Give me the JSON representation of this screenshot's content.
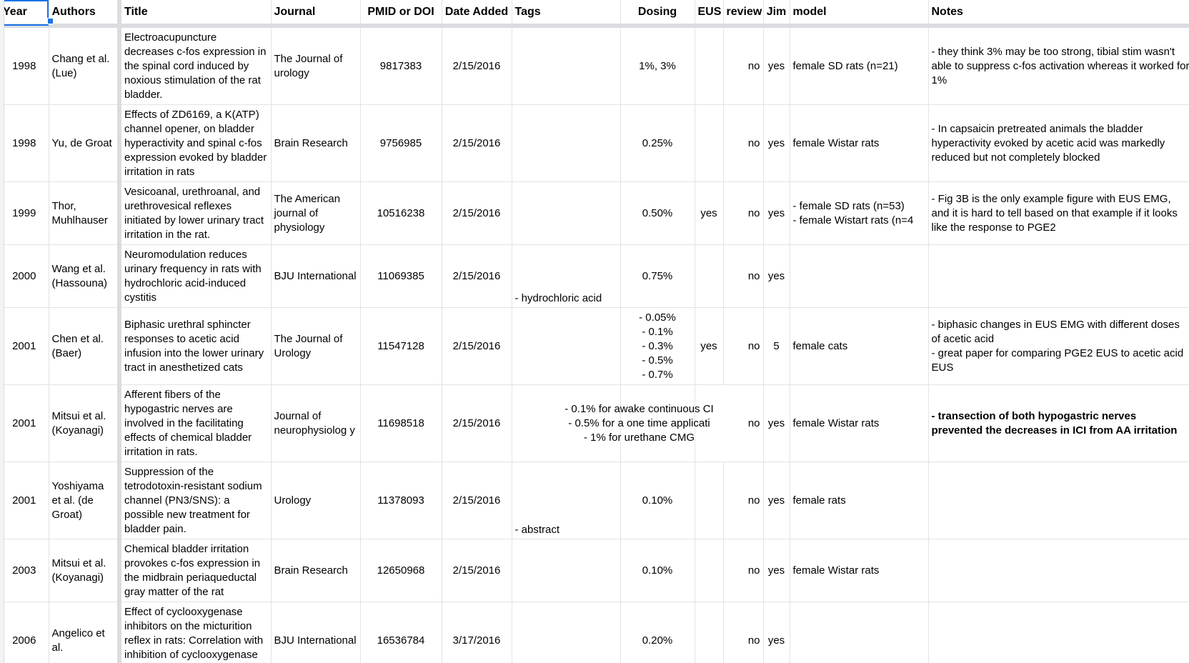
{
  "headers": {
    "year": "Year",
    "authors": "Authors",
    "title": "Title",
    "journal": "Journal",
    "pmid": "PMID or DOI",
    "date": "Date Added",
    "tags": "Tags",
    "dosing": "Dosing",
    "eus": "EUS",
    "review": "review",
    "jim": "Jim",
    "model": "model",
    "notes": "Notes"
  },
  "rows": [
    {
      "year": "1998",
      "authors": "Chang et al. (Lue)",
      "title": "Electroacupuncture decreases c-fos expression in the spinal cord induced by noxious stimulation of the rat bladder.",
      "journal": "The Journal of urology",
      "pmid": "9817383",
      "date": "2/15/2016",
      "tags": "",
      "dosing": "1%, 3%",
      "eus": "",
      "review": "no",
      "jim": "yes",
      "model": "female SD rats (n=21)",
      "notes": "- they think 3% may be too strong, tibial stim wasn't able to suppress c-fos activation whereas it worked for 1%"
    },
    {
      "year": "1998",
      "authors": "Yu, de Groat",
      "title": "Effects of ZD6169, a K(ATP) channel opener, on bladder hyperactivity and spinal c-fos expression evoked by bladder irritation in rats",
      "journal": "Brain Research",
      "pmid": "9756985",
      "date": "2/15/2016",
      "tags": "",
      "dosing": "0.25%",
      "eus": "",
      "review": "no",
      "jim": "yes",
      "model": "female Wistar rats",
      "notes": "- In capsaicin pretreated animals the bladder hyperactivity evoked by acetic acid was markedly reduced but not completely blocked"
    },
    {
      "year": "1999",
      "authors": "Thor, Muhlhauser",
      "title": "Vesicoanal, urethroanal, and urethrovesical reflexes initiated by lower urinary tract irritation in the rat.",
      "journal": "The American journal of physiology",
      "pmid": "10516238",
      "date": "2/15/2016",
      "tags": "",
      "dosing": "0.50%",
      "eus": "yes",
      "review": "no",
      "jim": "yes",
      "model": "- female SD rats (n=53)\n- female Wistart rats (n=4",
      "notes": "- Fig 3B is the only example figure with EUS EMG, and it is hard to tell based on that example if it looks like the response to PGE2"
    },
    {
      "year": "2000",
      "authors": "Wang et al. (Hassouna)",
      "title": "Neuromodulation reduces urinary frequency in rats with hydrochloric acid-induced cystitis",
      "journal": "BJU International",
      "pmid": "11069385",
      "date": "2/15/2016",
      "tags": "- hydrochloric acid",
      "dosing": "0.75%",
      "eus": "",
      "review": "no",
      "jim": "yes",
      "model": "",
      "notes": ""
    },
    {
      "year": "2001",
      "authors": "Chen et al. (Baer)",
      "title": "Biphasic urethral sphincter responses to acetic acid infusion into the lower urinary tract in anesthetized cats",
      "journal": "The Journal of Urology",
      "pmid": "11547128",
      "date": "2/15/2016",
      "tags": "",
      "dosing": "- 0.05%\n- 0.1%\n- 0.3%\n- 0.5%\n- 0.7%",
      "eus": "yes",
      "review": "no",
      "jim": "5",
      "model": "female cats",
      "notes": "- biphasic changes in EUS EMG with different doses of acetic acid\n- great paper for comparing PGE2 EUS to acetic acid EUS"
    },
    {
      "year": "2001",
      "authors": "Mitsui et al. (Koyanagi)",
      "title": "Afferent fibers of the hypogastric nerves are involved in the facilitating effects of chemical bladder irritation in rats.",
      "journal": "Journal of neurophysiolog y",
      "pmid": "11698518",
      "date": "2/15/2016",
      "tags": "",
      "dosing": "- 0.1% for awake continuous CI\n- 0.5% for a one time applicati\n- 1% for urethane CMG",
      "eus": "",
      "review": "no",
      "jim": "yes",
      "model": "female Wistar rats",
      "notes": "- transection of both hypogastric nerves prevented the decreases in ICI from AA irritation"
    },
    {
      "year": "2001",
      "authors": "Yoshiyama et al. (de Groat)",
      "title": "Suppression of the tetrodotoxin-resistant sodium channel (PN3/SNS): a possible new treatment for bladder pain.",
      "journal": "Urology",
      "pmid": "11378093",
      "date": "2/15/2016",
      "tags": "- abstract",
      "dosing": "0.10%",
      "eus": "",
      "review": "no",
      "jim": "yes",
      "model": "female rats",
      "notes": ""
    },
    {
      "year": "2003",
      "authors": "Mitsui et al. (Koyanagi)",
      "title": "Chemical bladder irritation provokes c-fos expression in the midbrain periaqueductal gray matter of the rat",
      "journal": "Brain Research",
      "pmid": "12650968",
      "date": "2/15/2016",
      "tags": "",
      "dosing": "0.10%",
      "eus": "",
      "review": "no",
      "jim": "yes",
      "model": "female Wistar rats",
      "notes": ""
    },
    {
      "year": "2006",
      "authors": "Angelico et al.",
      "title": "Effect of cyclooxygenase inhibitors on the micturition reflex in rats: Correlation with inhibition of cyclooxygenase isozymes",
      "journal": "BJU International",
      "pmid": "16536784",
      "date": "3/17/2016",
      "tags": "",
      "dosing": "0.20%",
      "eus": "",
      "review": "no",
      "jim": "yes",
      "model": "",
      "notes": ""
    }
  ]
}
